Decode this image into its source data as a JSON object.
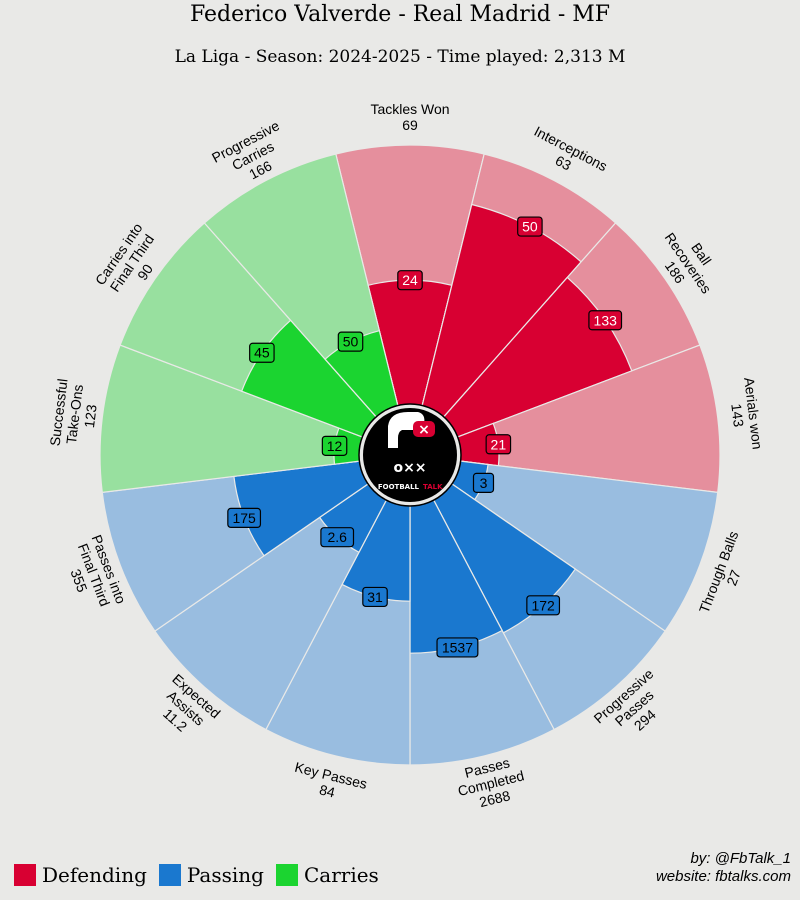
{
  "title": "Federico Valverde - Real Madrid - MF",
  "subtitle": "La Liga - Season: 2024-2025 - Time played: 2,313 M",
  "credit": {
    "line1": "by: @FbTalk_1",
    "line2": "website: fbtalks.com"
  },
  "logo": {
    "text_left": "FOOTBALL",
    "text_right": "TALK"
  },
  "legend": [
    {
      "label": "Defending",
      "color": "#d80032"
    },
    {
      "label": "Passing",
      "color": "#1a78cf"
    },
    {
      "label": "Carries",
      "color": "#1bd430"
    }
  ],
  "colors": {
    "background": "#e9e9e7",
    "defending": "#d80032",
    "defending_bg": "#e58f9d",
    "passing": "#1a78cf",
    "passing_bg": "#99bde0",
    "carries": "#1bd430",
    "carries_bg": "#98e09f"
  },
  "chart_data": {
    "type": "pizza",
    "title": "Federico Valverde - Real Madrid - MF",
    "subtitle": "La Liga - Season: 2024-2025 - Time played: 2,313 M",
    "metrics": [
      {
        "name": [
          "Tackles Won"
        ],
        "total": 69,
        "value": "24",
        "percentile": 48,
        "group": "defending"
      },
      {
        "name": [
          "Interceptions"
        ],
        "total": 63,
        "value": "50",
        "percentile": 80,
        "group": "defending"
      },
      {
        "name": [
          "Ball",
          "Recoveries"
        ],
        "total": 186,
        "value": "133",
        "percentile": 72,
        "group": "defending"
      },
      {
        "name": [
          "Aerials won"
        ],
        "total": 143,
        "value": "21",
        "percentile": 15,
        "group": "defending"
      },
      {
        "name": [
          "Through Balls"
        ],
        "total": 27,
        "value": "3",
        "percentile": 11,
        "group": "passing"
      },
      {
        "name": [
          "Progressive",
          "Passes"
        ],
        "total": 294,
        "value": "172",
        "percentile": 58,
        "group": "passing"
      },
      {
        "name": [
          "Passes",
          "Completed"
        ],
        "total": 2688,
        "value": "1537",
        "percentile": 57,
        "group": "passing"
      },
      {
        "name": [
          "Key Passes"
        ],
        "total": 84,
        "value": "31",
        "percentile": 37,
        "group": "passing"
      },
      {
        "name": [
          "Expected",
          "Assists"
        ],
        "total": "11.2",
        "value": "2.6",
        "percentile": 23,
        "group": "passing"
      },
      {
        "name": [
          "Passes into",
          "Final Third"
        ],
        "total": 355,
        "value": "175",
        "percentile": 49,
        "group": "passing"
      },
      {
        "name": [
          "Successful",
          "Take-Ons"
        ],
        "total": 123,
        "value": "12",
        "percentile": 10,
        "group": "carries"
      },
      {
        "name": [
          "Carries into",
          "Final Third"
        ],
        "total": 90,
        "value": "45",
        "percentile": 50,
        "group": "carries"
      },
      {
        "name": [
          "Progressive",
          "Carries"
        ],
        "total": 166,
        "value": "50",
        "percentile": 30,
        "group": "carries"
      }
    ]
  }
}
